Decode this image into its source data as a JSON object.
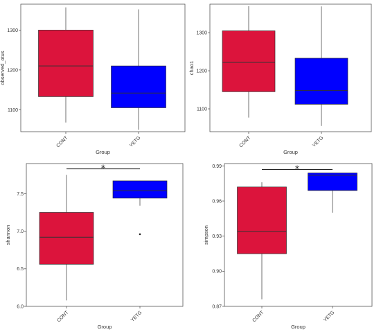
{
  "chart_data": [
    {
      "type": "box",
      "ylabel": "observed_otus",
      "xlabel": "Group",
      "ylim": [
        1045,
        1365
      ],
      "yticks": [
        1100,
        1200,
        1300
      ],
      "tick_labels": [
        "1100",
        "1200",
        "1300"
      ],
      "categories": [
        "CONT",
        "YETG"
      ],
      "boxes": [
        {
          "category": "CONT",
          "min": 1068,
          "q1": 1133,
          "median": 1210,
          "q3": 1300,
          "max": 1357,
          "color": "#dc143c"
        },
        {
          "category": "YETG",
          "min": 1050,
          "q1": 1105,
          "median": 1142,
          "q3": 1210,
          "max": 1352,
          "color": "#0000ff"
        }
      ]
    },
    {
      "type": "box",
      "ylabel": "chao1",
      "xlabel": "Group",
      "ylim": [
        1040,
        1375
      ],
      "yticks": [
        1100,
        1200,
        1300
      ],
      "tick_labels": [
        "1100",
        "1200",
        "1300"
      ],
      "categories": [
        "CONT",
        "YETG"
      ],
      "boxes": [
        {
          "category": "CONT",
          "min": 1077,
          "q1": 1145,
          "median": 1222,
          "q3": 1305,
          "max": 1370,
          "color": "#dc143c"
        },
        {
          "category": "YETG",
          "min": 1055,
          "q1": 1112,
          "median": 1148,
          "q3": 1233,
          "max": 1369,
          "color": "#0000ff"
        }
      ]
    },
    {
      "type": "box",
      "ylabel": "shannon",
      "xlabel": "Group",
      "ylim": [
        6.0,
        7.9
      ],
      "yticks": [
        6.0,
        6.5,
        7.0,
        7.5
      ],
      "tick_labels": [
        "6.0",
        "6.5",
        "7.0",
        "7.5"
      ],
      "categories": [
        "CONT",
        "YETG"
      ],
      "boxes": [
        {
          "category": "CONT",
          "min": 6.08,
          "q1": 6.56,
          "median": 6.92,
          "q3": 7.25,
          "max": 7.75,
          "color": "#dc143c",
          "outliers": []
        },
        {
          "category": "YETG",
          "min": 7.34,
          "q1": 7.44,
          "median": 7.54,
          "q3": 7.67,
          "max": 7.67,
          "color": "#0000ff",
          "outliers": [
            6.96
          ]
        }
      ],
      "significance": {
        "label": "*",
        "between": [
          "CONT",
          "YETG"
        ],
        "bar_value": 7.83
      }
    },
    {
      "type": "box",
      "ylabel": "simpson",
      "xlabel": "Group",
      "ylim": [
        0.87,
        0.992
      ],
      "yticks": [
        0.87,
        0.9,
        0.93,
        0.96,
        0.99
      ],
      "tick_labels": [
        "0.87",
        "0.90",
        "0.93",
        "0.96",
        "0.99"
      ],
      "categories": [
        "CONT",
        "YETG"
      ],
      "boxes": [
        {
          "category": "CONT",
          "min": 0.876,
          "q1": 0.915,
          "median": 0.934,
          "q3": 0.972,
          "max": 0.976,
          "color": "#dc143c"
        },
        {
          "category": "YETG",
          "min": 0.95,
          "q1": 0.969,
          "median": 0.982,
          "q3": 0.984,
          "max": 0.984,
          "color": "#0000ff"
        }
      ],
      "significance": {
        "label": "*",
        "between": [
          "CONT",
          "YETG"
        ],
        "bar_value": 0.987
      }
    }
  ]
}
